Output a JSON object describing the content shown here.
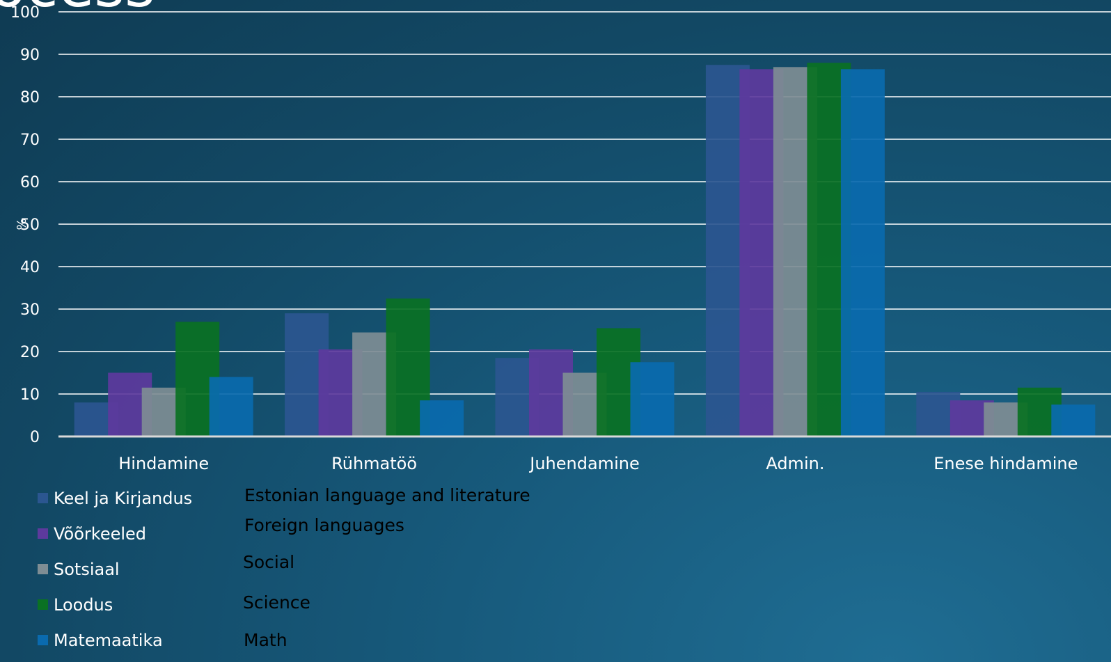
{
  "slide": {
    "title": "ocess"
  },
  "chart_data": {
    "type": "bar",
    "title": "",
    "xlabel": "",
    "ylabel": "%",
    "ylim": [
      0,
      100
    ],
    "yticks": [
      0,
      10,
      20,
      30,
      40,
      50,
      60,
      70,
      80,
      90,
      100
    ],
    "grid": true,
    "legend_position": "bottom-left",
    "categories": [
      "Hindamine",
      "Rühmatöö",
      "Juhendamine",
      "Admin.",
      "Enese hindamine"
    ],
    "series": [
      {
        "name": "Keel ja Kirjandus",
        "color": "#2b5690",
        "values": [
          8,
          29,
          18.5,
          87.5,
          10.5
        ]
      },
      {
        "name": "Võõrkeeled",
        "color": "#5d3a9d",
        "values": [
          15,
          20.5,
          20.5,
          86.5,
          8.5
        ]
      },
      {
        "name": "Sotsiaal",
        "color": "#7e8d94",
        "values": [
          11.5,
          24.5,
          15,
          87,
          8
        ]
      },
      {
        "name": "Loodus",
        "color": "#0a7123",
        "values": [
          27,
          32.5,
          25.5,
          88,
          11.5
        ]
      },
      {
        "name": "Matemaatika",
        "color": "#0a6aae",
        "values": [
          14,
          8.5,
          17.5,
          86.5,
          7.5
        ]
      }
    ]
  },
  "translations": [
    "Estonian language and literature",
    "Foreign languages",
    "Social",
    "Science",
    "Math"
  ]
}
